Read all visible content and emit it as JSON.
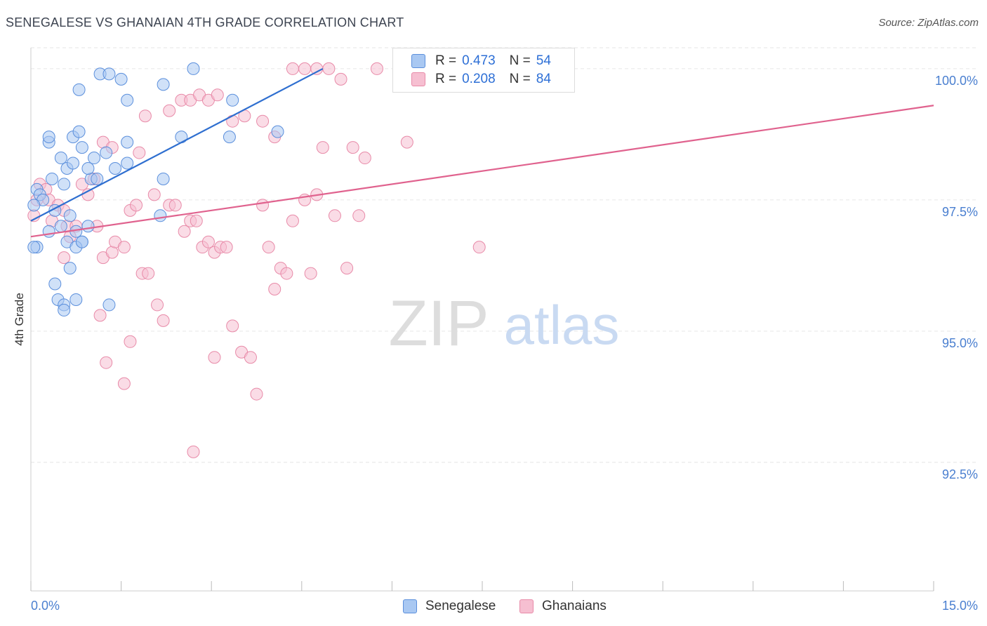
{
  "header": {
    "title": "SENEGALESE VS GHANAIAN 4TH GRADE CORRELATION CHART",
    "source": "Source: ZipAtlas.com"
  },
  "watermark": {
    "zip": "ZIP",
    "atlas": "atlas"
  },
  "legend": {
    "items": [
      {
        "r_label": "R =",
        "r_value": "0.473",
        "n_label": "N =",
        "n_value": "54"
      },
      {
        "r_label": "R =",
        "r_value": "0.208",
        "n_label": "N =",
        "n_value": "84"
      }
    ]
  },
  "colors": {
    "blue_fill": "#a9c8f2",
    "blue_stroke": "#5b8fdc",
    "blue_line": "#2f6fd0",
    "pink_fill": "#f6bfd1",
    "pink_stroke": "#e88aa8",
    "pink_line": "#e0628e",
    "tick_label": "#4a7fd0",
    "grid": "#e6e6e6"
  },
  "chart_data": {
    "type": "scatter",
    "title": "SENEGALESE VS GHANAIAN 4TH GRADE CORRELATION CHART",
    "xlabel": "",
    "ylabel": "4th Grade",
    "xlim": [
      0.0,
      15.0
    ],
    "ylim": [
      90.05,
      100.4
    ],
    "x_tick_labels": [
      "0.0%",
      "15.0%"
    ],
    "y_ticks": [
      92.5,
      95.0,
      97.5,
      100.0
    ],
    "y_tick_labels": [
      "92.5%",
      "95.0%",
      "97.5%",
      "100.0%"
    ],
    "grid": true,
    "series": [
      {
        "name": "Senegalese",
        "color": "#5b8fdc",
        "points": [
          [
            0.1,
            97.7
          ],
          [
            0.15,
            97.6
          ],
          [
            0.2,
            97.5
          ],
          [
            0.05,
            97.4
          ],
          [
            0.3,
            96.9
          ],
          [
            0.35,
            97.9
          ],
          [
            0.4,
            97.3
          ],
          [
            0.5,
            97.0
          ],
          [
            0.55,
            97.8
          ],
          [
            0.65,
            97.2
          ],
          [
            0.75,
            96.9
          ],
          [
            0.85,
            96.7
          ],
          [
            0.95,
            97.0
          ],
          [
            1.0,
            97.9
          ],
          [
            1.1,
            97.9
          ],
          [
            0.6,
            98.1
          ],
          [
            0.7,
            98.2
          ],
          [
            0.85,
            98.5
          ],
          [
            0.95,
            98.1
          ],
          [
            1.05,
            98.3
          ],
          [
            1.25,
            98.4
          ],
          [
            0.3,
            98.6
          ],
          [
            0.3,
            98.7
          ],
          [
            0.5,
            98.3
          ],
          [
            0.7,
            98.7
          ],
          [
            0.8,
            98.8
          ],
          [
            1.4,
            98.1
          ],
          [
            1.6,
            98.2
          ],
          [
            0.1,
            96.6
          ],
          [
            0.05,
            96.6
          ],
          [
            0.6,
            96.7
          ],
          [
            0.75,
            96.6
          ],
          [
            0.85,
            96.7
          ],
          [
            0.65,
            96.2
          ],
          [
            0.4,
            95.9
          ],
          [
            0.45,
            95.6
          ],
          [
            0.55,
            95.5
          ],
          [
            0.55,
            95.4
          ],
          [
            0.75,
            95.6
          ],
          [
            1.3,
            95.5
          ],
          [
            0.8,
            99.6
          ],
          [
            1.15,
            99.9
          ],
          [
            1.3,
            99.9
          ],
          [
            1.5,
            99.8
          ],
          [
            1.6,
            99.4
          ],
          [
            1.6,
            98.6
          ],
          [
            2.2,
            99.7
          ],
          [
            2.7,
            100.0
          ],
          [
            2.5,
            98.7
          ],
          [
            3.35,
            99.4
          ],
          [
            4.1,
            98.8
          ],
          [
            2.15,
            97.2
          ],
          [
            2.2,
            97.9
          ],
          [
            3.3,
            98.7
          ]
        ]
      },
      {
        "name": "Ghanaians",
        "color": "#e88aa8",
        "points": [
          [
            0.05,
            97.2
          ],
          [
            0.1,
            97.5
          ],
          [
            0.15,
            97.8
          ],
          [
            0.25,
            97.7
          ],
          [
            0.3,
            97.5
          ],
          [
            0.35,
            97.1
          ],
          [
            0.45,
            97.4
          ],
          [
            0.55,
            97.3
          ],
          [
            0.6,
            97.0
          ],
          [
            0.65,
            96.8
          ],
          [
            0.75,
            97.0
          ],
          [
            0.85,
            97.8
          ],
          [
            0.95,
            97.6
          ],
          [
            1.05,
            97.9
          ],
          [
            1.1,
            97.0
          ],
          [
            1.2,
            96.4
          ],
          [
            1.35,
            96.5
          ],
          [
            1.4,
            96.7
          ],
          [
            1.55,
            96.6
          ],
          [
            1.65,
            97.3
          ],
          [
            1.75,
            97.4
          ],
          [
            1.85,
            96.1
          ],
          [
            1.95,
            96.1
          ],
          [
            2.05,
            97.6
          ],
          [
            2.1,
            95.5
          ],
          [
            2.2,
            95.2
          ],
          [
            2.3,
            97.4
          ],
          [
            2.4,
            97.4
          ],
          [
            2.55,
            96.9
          ],
          [
            2.65,
            97.1
          ],
          [
            2.75,
            97.1
          ],
          [
            2.85,
            96.6
          ],
          [
            2.95,
            96.7
          ],
          [
            3.05,
            96.5
          ],
          [
            3.15,
            96.6
          ],
          [
            3.25,
            96.6
          ],
          [
            3.35,
            95.1
          ],
          [
            3.5,
            94.6
          ],
          [
            3.65,
            94.5
          ],
          [
            3.75,
            93.8
          ],
          [
            3.85,
            97.4
          ],
          [
            3.95,
            96.6
          ],
          [
            4.05,
            95.8
          ],
          [
            4.15,
            96.2
          ],
          [
            4.25,
            96.1
          ],
          [
            4.35,
            97.1
          ],
          [
            4.55,
            97.5
          ],
          [
            4.65,
            96.1
          ],
          [
            4.75,
            97.6
          ],
          [
            4.85,
            98.5
          ],
          [
            5.05,
            97.2
          ],
          [
            5.25,
            96.2
          ],
          [
            5.45,
            97.2
          ],
          [
            0.55,
            96.4
          ],
          [
            1.2,
            98.6
          ],
          [
            1.35,
            98.5
          ],
          [
            1.8,
            98.4
          ],
          [
            1.9,
            99.1
          ],
          [
            2.3,
            99.2
          ],
          [
            2.5,
            99.4
          ],
          [
            2.65,
            99.4
          ],
          [
            2.8,
            99.5
          ],
          [
            2.95,
            99.4
          ],
          [
            3.1,
            99.5
          ],
          [
            3.35,
            99.0
          ],
          [
            3.55,
            99.1
          ],
          [
            3.85,
            99.0
          ],
          [
            4.05,
            98.7
          ],
          [
            4.35,
            100.0
          ],
          [
            4.55,
            100.0
          ],
          [
            4.75,
            100.0
          ],
          [
            4.95,
            100.0
          ],
          [
            5.15,
            99.8
          ],
          [
            5.35,
            98.5
          ],
          [
            5.55,
            98.3
          ],
          [
            5.75,
            100.0
          ],
          [
            6.25,
            98.6
          ],
          [
            1.65,
            94.8
          ],
          [
            1.55,
            94.0
          ],
          [
            1.25,
            94.4
          ],
          [
            1.15,
            95.3
          ],
          [
            2.7,
            92.7
          ],
          [
            3.05,
            94.5
          ],
          [
            7.45,
            96.6
          ]
        ]
      }
    ],
    "trend_lines": [
      {
        "series": "Senegalese",
        "x": [
          0.0,
          4.85
        ],
        "y": [
          97.1,
          100.0
        ]
      },
      {
        "series": "Ghanaians",
        "x": [
          0.0,
          15.0
        ],
        "y": [
          96.8,
          99.3
        ]
      }
    ]
  },
  "bottom_legend": {
    "items": [
      "Senegalese",
      "Ghanaians"
    ]
  }
}
